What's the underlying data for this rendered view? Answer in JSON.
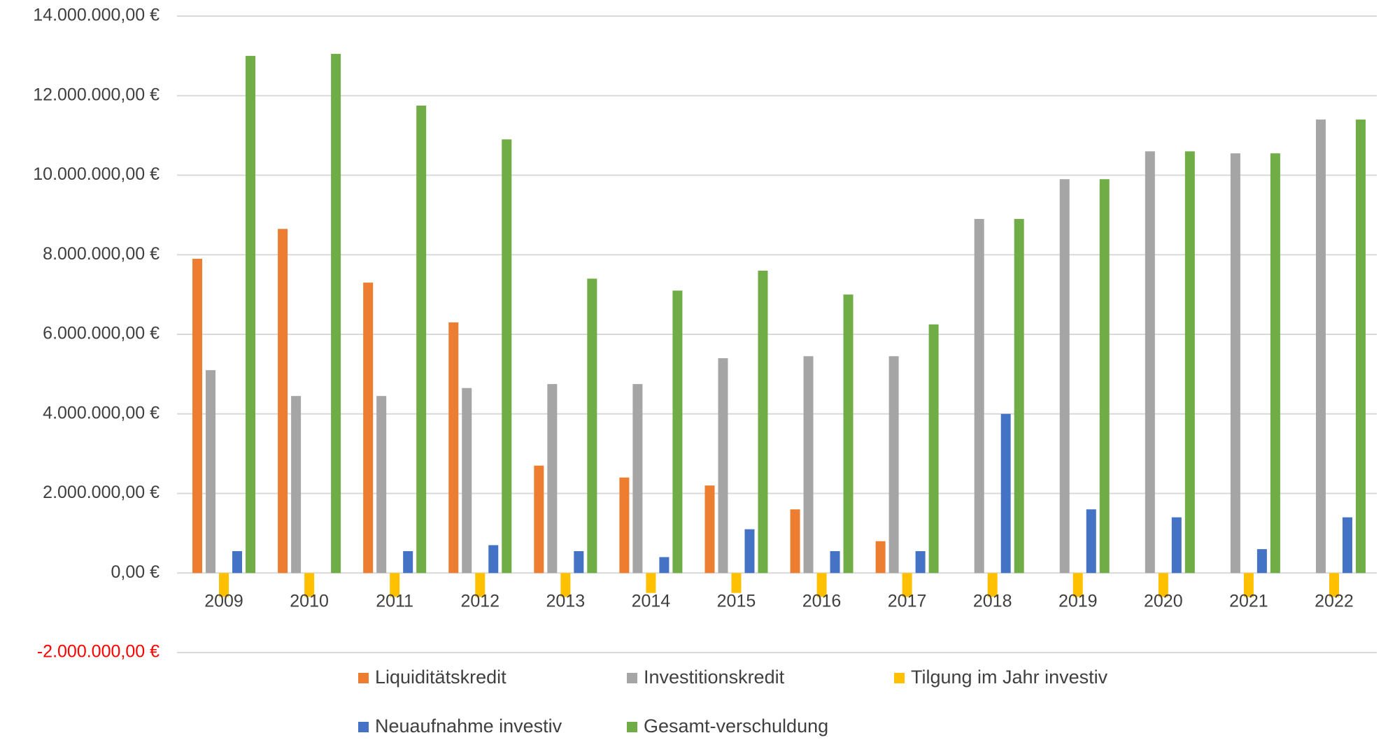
{
  "chart_data": {
    "type": "bar",
    "categories": [
      "2009",
      "2010",
      "2011",
      "2012",
      "2013",
      "2014",
      "2015",
      "2016",
      "2017",
      "2018",
      "2019",
      "2020",
      "2021",
      "2022"
    ],
    "series": [
      {
        "name": "Liquiditätskredit",
        "color": "#ed7d31",
        "values": [
          7900000,
          8650000,
          7300000,
          6300000,
          2700000,
          2400000,
          2200000,
          1600000,
          800000,
          0,
          0,
          0,
          0,
          0
        ]
      },
      {
        "name": "Investitionskredit",
        "color": "#a5a5a5",
        "values": [
          5100000,
          4450000,
          4450000,
          4650000,
          4750000,
          4750000,
          5400000,
          5450000,
          5450000,
          8900000,
          9900000,
          10600000,
          10550000,
          11400000
        ]
      },
      {
        "name": "Tilgung im Jahr investiv",
        "color": "#ffc000",
        "values": [
          -600000,
          -600000,
          -600000,
          -600000,
          -600000,
          -500000,
          -500000,
          -600000,
          -600000,
          -600000,
          -600000,
          -600000,
          -600000,
          -600000
        ]
      },
      {
        "name": "Neuaufnahme investiv",
        "color": "#4472c4",
        "values": [
          550000,
          0,
          550000,
          700000,
          550000,
          400000,
          1100000,
          550000,
          550000,
          4000000,
          1600000,
          1400000,
          600000,
          1400000
        ]
      },
      {
        "name": "Gesamt-verschuldung",
        "color": "#70ad47",
        "values": [
          13000000,
          13050000,
          11750000,
          10900000,
          7400000,
          7100000,
          7600000,
          7000000,
          6250000,
          8900000,
          9900000,
          10600000,
          10550000,
          11400000
        ]
      }
    ],
    "ylim": [
      -2000000,
      14000000
    ],
    "yticks": [
      {
        "value": -2000000,
        "label": "-2.000.000,00 €"
      },
      {
        "value": 0,
        "label": "0,00 €"
      },
      {
        "value": 2000000,
        "label": "2.000.000,00 €"
      },
      {
        "value": 4000000,
        "label": "4.000.000,00 €"
      },
      {
        "value": 6000000,
        "label": "6.000.000,00 €"
      },
      {
        "value": 8000000,
        "label": "8.000.000,00 €"
      },
      {
        "value": 10000000,
        "label": "10.000.000,00 €"
      },
      {
        "value": 12000000,
        "label": "12.000.000,00 €"
      },
      {
        "value": 14000000,
        "label": "14.000.000,00 €"
      }
    ],
    "negative_tick_color": "#ff0000",
    "grid": true,
    "legend": "bottom"
  }
}
